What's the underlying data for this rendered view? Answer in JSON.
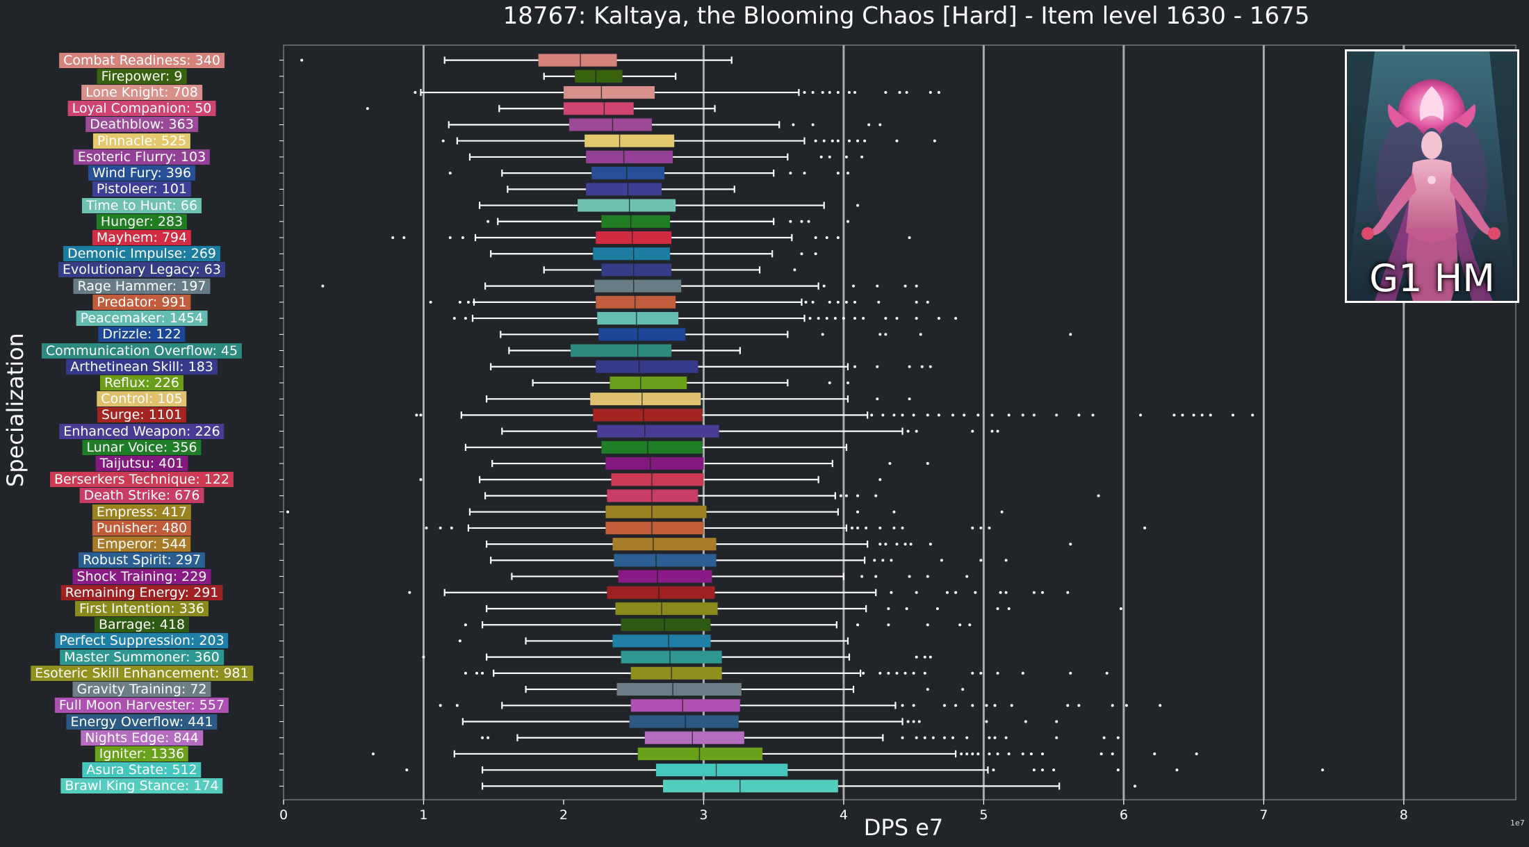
{
  "chart_data": {
    "type": "box",
    "title": "18767: Kaltaya, the Blooming Chaos [Hard] - Item level 1630 - 1675",
    "xlabel": "DPS e7",
    "ylabel": "Specialization",
    "offset_text": "1e7",
    "xlim": [
      0,
      8.8
    ],
    "x_ticks": [
      0,
      1,
      2,
      3,
      4,
      5,
      6,
      7,
      8
    ],
    "grid_lines": [
      1,
      3,
      4,
      5,
      6,
      7,
      8
    ],
    "orientation": "horizontal",
    "series": [
      {
        "label": "Combat Readiness: 340",
        "color": "#d4827a",
        "whisker_low": 1.15,
        "q1": 1.82,
        "median": 2.12,
        "q3": 2.38,
        "whisker_high": 3.2,
        "outliers": [
          0.13
        ]
      },
      {
        "label": "Firepower: 9",
        "color": "#39620f",
        "whisker_low": 1.86,
        "q1": 2.08,
        "median": 2.23,
        "q3": 2.42,
        "whisker_high": 2.8,
        "outliers": []
      },
      {
        "label": "Lone Knight: 708",
        "color": "#d7908a",
        "whisker_low": 0.98,
        "q1": 2.0,
        "median": 2.27,
        "q3": 2.65,
        "whisker_high": 3.68,
        "outliers": [
          0.94,
          3.72,
          3.78,
          3.85,
          3.9,
          3.96,
          4.04,
          4.08,
          4.3,
          4.4,
          4.45,
          4.62,
          4.68
        ]
      },
      {
        "label": "Loyal Companion: 50",
        "color": "#cf4470",
        "whisker_low": 1.54,
        "q1": 2.0,
        "median": 2.29,
        "q3": 2.5,
        "whisker_high": 3.08,
        "outliers": [
          0.6
        ]
      },
      {
        "label": "Deathblow: 363",
        "color": "#9c4a98",
        "whisker_low": 1.18,
        "q1": 2.04,
        "median": 2.35,
        "q3": 2.63,
        "whisker_high": 3.54,
        "outliers": [
          3.64,
          3.78,
          4.18,
          4.26
        ]
      },
      {
        "label": "Pinnacle: 525",
        "color": "#e3c86e",
        "whisker_low": 1.24,
        "q1": 2.15,
        "median": 2.4,
        "q3": 2.79,
        "whisker_high": 3.72,
        "outliers": [
          1.14,
          3.8,
          3.86,
          3.92,
          3.96,
          4.04,
          4.1,
          4.15,
          4.38,
          4.65
        ]
      },
      {
        "label": "Esoteric Flurry: 103",
        "color": "#944097",
        "whisker_low": 1.33,
        "q1": 2.16,
        "median": 2.43,
        "q3": 2.78,
        "whisker_high": 3.6,
        "outliers": [
          3.84,
          3.9,
          4.02,
          4.13
        ]
      },
      {
        "label": "Wind Fury: 396",
        "color": "#264f95",
        "whisker_low": 1.56,
        "q1": 2.2,
        "median": 2.45,
        "q3": 2.72,
        "whisker_high": 3.5,
        "outliers": [
          1.19,
          3.62,
          3.72,
          3.96,
          4.03
        ]
      },
      {
        "label": "Pistoleer: 101",
        "color": "#3d3f95",
        "whisker_low": 1.6,
        "q1": 2.16,
        "median": 2.46,
        "q3": 2.7,
        "whisker_high": 3.22,
        "outliers": []
      },
      {
        "label": "Time to Hunt: 66",
        "color": "#6fc1b2",
        "whisker_low": 1.4,
        "q1": 2.1,
        "median": 2.47,
        "q3": 2.8,
        "whisker_high": 3.86,
        "outliers": [
          4.1
        ]
      },
      {
        "label": "Hunger: 283",
        "color": "#217d22",
        "whisker_low": 1.53,
        "q1": 2.27,
        "median": 2.48,
        "q3": 2.76,
        "whisker_high": 3.5,
        "outliers": [
          1.46,
          3.62,
          3.7,
          3.75,
          4.03
        ]
      },
      {
        "label": "Mayhem: 794",
        "color": "#d12c41",
        "whisker_low": 1.37,
        "q1": 2.23,
        "median": 2.49,
        "q3": 2.77,
        "whisker_high": 3.63,
        "outliers": [
          0.78,
          0.86,
          1.19,
          1.28,
          3.8,
          3.88,
          3.96,
          4.47
        ]
      },
      {
        "label": "Demonic Impulse: 269",
        "color": "#1c7da0",
        "whisker_low": 1.48,
        "q1": 2.21,
        "median": 2.5,
        "q3": 2.76,
        "whisker_high": 3.49,
        "outliers": [
          3.7,
          3.8
        ]
      },
      {
        "label": "Evolutionary Legacy: 63",
        "color": "#343d85",
        "whisker_low": 1.86,
        "q1": 2.27,
        "median": 2.5,
        "q3": 2.77,
        "whisker_high": 3.4,
        "outliers": [
          3.65
        ]
      },
      {
        "label": "Rage Hammer: 197",
        "color": "#667d85",
        "whisker_low": 1.44,
        "q1": 2.22,
        "median": 2.5,
        "q3": 2.84,
        "whisker_high": 3.82,
        "outliers": [
          0.28,
          3.86,
          4.07,
          4.24,
          4.44,
          4.52
        ]
      },
      {
        "label": "Predator: 991",
        "color": "#c05d3d",
        "whisker_low": 1.36,
        "q1": 2.23,
        "median": 2.51,
        "q3": 2.8,
        "whisker_high": 3.7,
        "outliers": [
          1.05,
          1.26,
          1.32,
          1.36,
          3.73,
          3.78,
          3.9,
          3.96,
          4.02,
          4.08,
          4.25,
          4.52,
          4.6
        ]
      },
      {
        "label": "Peacemaker: 1454",
        "color": "#64bbaf",
        "whisker_low": 1.35,
        "q1": 2.24,
        "median": 2.52,
        "q3": 2.82,
        "whisker_high": 3.72,
        "outliers": [
          1.22,
          1.3,
          3.76,
          3.82,
          3.88,
          3.94,
          4.0,
          4.08,
          4.14,
          4.3,
          4.38,
          4.52,
          4.68,
          4.8
        ]
      },
      {
        "label": "Drizzle: 122",
        "color": "#1b4796",
        "whisker_low": 1.55,
        "q1": 2.25,
        "median": 2.53,
        "q3": 2.87,
        "whisker_high": 3.6,
        "outliers": [
          3.85,
          4.26,
          4.3,
          4.55,
          5.62
        ]
      },
      {
        "label": "Communication Overflow: 45",
        "color": "#2d8a80",
        "whisker_low": 1.61,
        "q1": 2.05,
        "median": 2.53,
        "q3": 2.77,
        "whisker_high": 3.26,
        "outliers": []
      },
      {
        "label": "Arthetinean Skill: 183",
        "color": "#363a8a",
        "whisker_low": 1.48,
        "q1": 2.23,
        "median": 2.54,
        "q3": 2.96,
        "whisker_high": 4.03,
        "outliers": [
          4.08,
          4.24,
          4.47,
          4.56,
          4.62
        ]
      },
      {
        "label": "Reflux: 226",
        "color": "#6a9e18",
        "whisker_low": 1.78,
        "q1": 2.33,
        "median": 2.55,
        "q3": 2.88,
        "whisker_high": 3.6,
        "outliers": [
          3.9,
          4.03
        ]
      },
      {
        "label": "Control: 105",
        "color": "#e0c170",
        "whisker_low": 1.45,
        "q1": 2.19,
        "median": 2.56,
        "q3": 2.98,
        "whisker_high": 4.03,
        "outliers": [
          4.24,
          4.47
        ]
      },
      {
        "label": "Surge: 1101",
        "color": "#a32420",
        "whisker_low": 1.27,
        "q1": 2.21,
        "median": 2.57,
        "q3": 2.99,
        "whisker_high": 4.17,
        "outliers": [
          0.95,
          0.98,
          4.2,
          4.28,
          4.36,
          4.42,
          4.5,
          4.6,
          4.68,
          4.78,
          4.86,
          4.96,
          5.06,
          5.18,
          5.28,
          5.36,
          5.52,
          5.68,
          5.78,
          6.12,
          6.36,
          6.42,
          6.5,
          6.56,
          6.62,
          6.78,
          6.92
        ]
      },
      {
        "label": "Enhanced Weapon: 226",
        "color": "#493c94",
        "whisker_low": 1.56,
        "q1": 2.24,
        "median": 2.58,
        "q3": 3.11,
        "whisker_high": 4.42,
        "outliers": [
          4.46,
          4.52,
          4.92,
          5.06,
          5.1
        ]
      },
      {
        "label": "Lunar Voice: 356",
        "color": "#1f7c27",
        "whisker_low": 1.3,
        "q1": 2.27,
        "median": 2.6,
        "q3": 2.99,
        "whisker_high": 4.02,
        "outliers": []
      },
      {
        "label": "Taijutsu: 401",
        "color": "#82197f",
        "whisker_low": 1.49,
        "q1": 2.3,
        "median": 2.62,
        "q3": 3.0,
        "whisker_high": 3.92,
        "outliers": [
          4.33,
          4.6
        ]
      },
      {
        "label": "Berserkers Technique: 122",
        "color": "#cc3a53",
        "whisker_low": 1.4,
        "q1": 2.34,
        "median": 2.63,
        "q3": 3.0,
        "whisker_high": 3.82,
        "outliers": [
          0.98,
          4.26
        ]
      },
      {
        "label": "Death Strike: 676",
        "color": "#c83d65",
        "whisker_low": 1.44,
        "q1": 2.31,
        "median": 2.63,
        "q3": 2.96,
        "whisker_high": 3.94,
        "outliers": [
          3.98,
          4.02,
          4.1,
          4.23,
          5.82
        ]
      },
      {
        "label": "Empress: 417",
        "color": "#9c8121",
        "whisker_low": 1.33,
        "q1": 2.3,
        "median": 2.63,
        "q3": 3.02,
        "whisker_high": 3.96,
        "outliers": [
          0.03,
          4.1,
          4.36,
          5.13
        ]
      },
      {
        "label": "Punisher: 480",
        "color": "#c05c39",
        "whisker_low": 1.32,
        "q1": 2.3,
        "median": 2.63,
        "q3": 3.0,
        "whisker_high": 4.02,
        "outliers": [
          1.02,
          1.12,
          1.2,
          4.06,
          4.1,
          4.16,
          4.26,
          4.36,
          4.42,
          4.92,
          4.98,
          5.04,
          6.15
        ]
      },
      {
        "label": "Emperor: 544",
        "color": "#a87b28",
        "whisker_low": 1.45,
        "q1": 2.35,
        "median": 2.64,
        "q3": 3.09,
        "whisker_high": 4.17,
        "outliers": [
          4.26,
          4.3,
          4.38,
          4.44,
          4.48,
          4.62,
          5.62
        ]
      },
      {
        "label": "Robust Spirit: 297",
        "color": "#2b5f94",
        "whisker_low": 1.48,
        "q1": 2.36,
        "median": 2.66,
        "q3": 3.09,
        "whisker_high": 4.15,
        "outliers": [
          4.22,
          4.28,
          4.34,
          4.7,
          4.98,
          5.16
        ]
      },
      {
        "label": "Shock Training: 229",
        "color": "#8a1a85",
        "whisker_low": 1.63,
        "q1": 2.39,
        "median": 2.67,
        "q3": 3.06,
        "whisker_high": 4.0,
        "outliers": [
          4.13,
          4.23,
          4.47,
          4.6,
          4.88
        ]
      },
      {
        "label": "Remaining Energy: 291",
        "color": "#9e2122",
        "whisker_low": 1.15,
        "q1": 2.31,
        "median": 2.68,
        "q3": 3.08,
        "whisker_high": 4.23,
        "outliers": [
          0.9,
          4.34,
          4.52,
          4.74,
          4.8,
          4.94,
          5.12,
          5.16,
          5.36,
          5.42,
          5.6
        ]
      },
      {
        "label": "First Intention: 336",
        "color": "#8a8a1c",
        "whisker_low": 1.45,
        "q1": 2.37,
        "median": 2.7,
        "q3": 3.1,
        "whisker_high": 4.16,
        "outliers": [
          4.32,
          4.45,
          4.67,
          5.1,
          5.18,
          5.98
        ]
      },
      {
        "label": "Barrage: 418",
        "color": "#2f5a14",
        "whisker_low": 1.42,
        "q1": 2.41,
        "median": 2.72,
        "q3": 3.05,
        "whisker_high": 3.95,
        "outliers": [
          1.3,
          4.1,
          4.32,
          4.6,
          4.83,
          4.9
        ]
      },
      {
        "label": "Perfect Suppression: 203",
        "color": "#1f7fa6",
        "whisker_low": 1.73,
        "q1": 2.35,
        "median": 2.75,
        "q3": 3.05,
        "whisker_high": 4.03,
        "outliers": [
          1.26
        ]
      },
      {
        "label": "Master Summoner: 360",
        "color": "#2d9790",
        "whisker_low": 1.45,
        "q1": 2.41,
        "median": 2.76,
        "q3": 3.13,
        "whisker_high": 4.04,
        "outliers": [
          1.0,
          4.52,
          4.58,
          4.62
        ]
      },
      {
        "label": "Esoteric Skill Enhancement: 981",
        "color": "#8f901e",
        "whisker_low": 1.5,
        "q1": 2.48,
        "median": 2.77,
        "q3": 3.13,
        "whisker_high": 4.12,
        "outliers": [
          1.3,
          1.38,
          1.42,
          4.14,
          4.26,
          4.32,
          4.38,
          4.44,
          4.5,
          4.58,
          4.92,
          4.98,
          5.1,
          5.28,
          5.62,
          5.88
        ]
      },
      {
        "label": "Gravity Training: 72",
        "color": "#6c7f86",
        "whisker_low": 1.73,
        "q1": 2.38,
        "median": 2.78,
        "q3": 3.27,
        "whisker_high": 4.07,
        "outliers": [
          4.6,
          4.85
        ]
      },
      {
        "label": "Full Moon Harvester: 557",
        "color": "#ad50b1",
        "whisker_low": 1.56,
        "q1": 2.48,
        "median": 2.85,
        "q3": 3.26,
        "whisker_high": 4.37,
        "outliers": [
          1.12,
          1.24,
          4.42,
          4.5,
          4.72,
          4.8,
          4.92,
          5.02,
          5.08,
          5.2,
          5.6,
          5.68,
          5.92,
          6.02,
          6.26
        ]
      },
      {
        "label": "Energy Overflow: 441",
        "color": "#2d5a85",
        "whisker_low": 1.28,
        "q1": 2.47,
        "median": 2.87,
        "q3": 3.25,
        "whisker_high": 4.42,
        "outliers": [
          4.46,
          4.5,
          4.54,
          5.02,
          5.3,
          5.52
        ]
      },
      {
        "label": "Nights Edge: 844",
        "color": "#b56dc1",
        "whisker_low": 1.67,
        "q1": 2.58,
        "median": 2.92,
        "q3": 3.29,
        "whisker_high": 4.28,
        "outliers": [
          1.42,
          1.46,
          4.42,
          4.52,
          4.58,
          4.64,
          4.72,
          4.78,
          4.88,
          5.04,
          5.08,
          5.16,
          5.52,
          5.86,
          5.96
        ]
      },
      {
        "label": "Igniter: 1336",
        "color": "#6aa11b",
        "whisker_low": 1.22,
        "q1": 2.53,
        "median": 2.97,
        "q3": 3.42,
        "whisker_high": 4.8,
        "outliers": [
          0.64,
          4.84,
          4.88,
          4.92,
          4.96,
          5.04,
          5.1,
          5.18,
          5.28,
          5.34,
          5.42,
          5.84,
          5.92,
          6.22,
          6.52
        ]
      },
      {
        "label": "Asura State: 512",
        "color": "#45c6bd",
        "whisker_low": 1.42,
        "q1": 2.66,
        "median": 3.09,
        "q3": 3.6,
        "whisker_high": 5.03,
        "outliers": [
          0.88,
          5.07,
          5.36,
          5.42,
          5.5,
          5.96,
          6.38,
          7.42
        ]
      },
      {
        "label": "Brawl King Stance: 174",
        "color": "#54cdbf",
        "whisker_low": 1.42,
        "q1": 2.71,
        "median": 3.26,
        "q3": 3.96,
        "whisker_high": 5.54,
        "outliers": [
          6.08
        ]
      }
    ]
  },
  "boss_card": {
    "tag": "G1 HM",
    "icon": "boss-portrait"
  }
}
